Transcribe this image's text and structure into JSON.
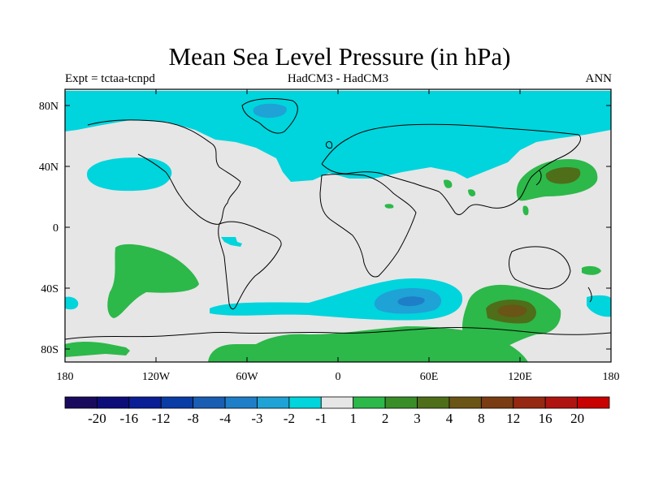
{
  "title": "Mean Sea Level Pressure (in hPa)",
  "left_string": "Expt = tctaa-tcnpd",
  "center_string": "HadCM3 - HadCM3",
  "right_string": "ANN",
  "lat_labels": [
    "80N",
    "40N",
    "0",
    "40S",
    "80S"
  ],
  "lon_labels": [
    "180",
    "120W",
    "60W",
    "0",
    "60E",
    "120E",
    "180"
  ],
  "colorbar": {
    "colors": [
      "#1a0a5e",
      "#0d0d7a",
      "#0a1e96",
      "#0a3ca6",
      "#1a5eb4",
      "#1f7ec8",
      "#1fa2d6",
      "#00d4dc",
      "#e6e6e6",
      "#2db84a",
      "#3a8e28",
      "#4e6e1a",
      "#6a5416",
      "#7a3c12",
      "#962812",
      "#b01410",
      "#c80000"
    ],
    "labels": [
      "-20",
      "-16",
      "-12",
      "-8",
      "-4",
      "-3",
      "-2",
      "-1",
      "1",
      "2",
      "3",
      "4",
      "8",
      "12",
      "16",
      "20"
    ]
  },
  "palette": {
    "neutral": "#e6e6e6",
    "cyan": "#00d4dc",
    "blue": "#1fa2d6",
    "blue_dark": "#1f7ec8",
    "green": "#2db84a",
    "green_dark": "#3a8e28",
    "olive": "#4e6e1a",
    "brown": "#6a5416"
  }
}
